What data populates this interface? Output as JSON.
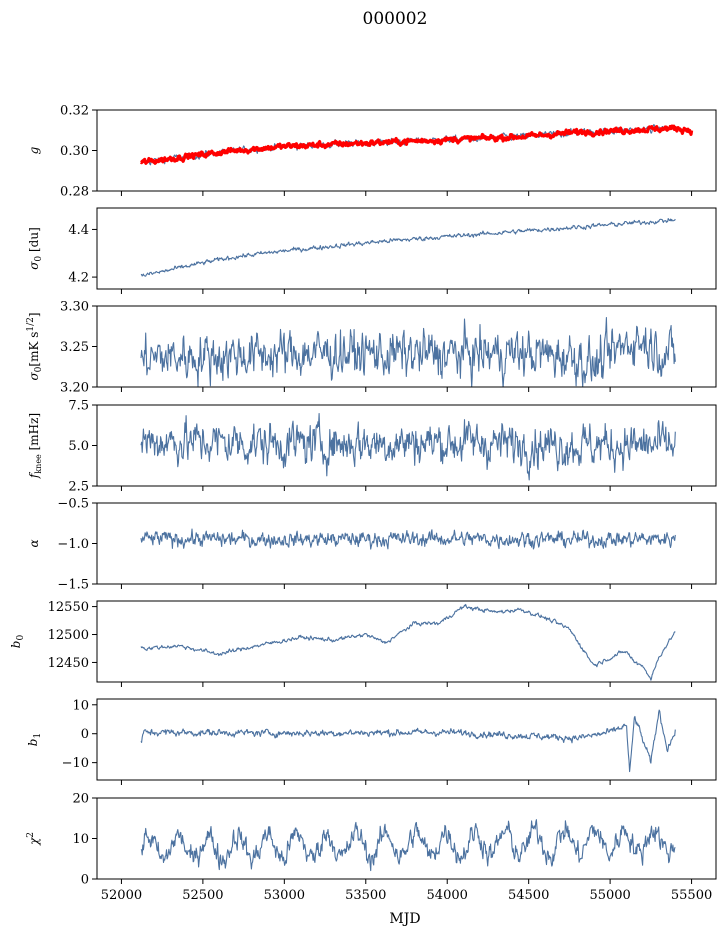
{
  "figure": {
    "title": "000002",
    "xlabel": "MJD"
  },
  "chart_data": [
    {
      "type": "line",
      "ylabel": "g",
      "ylim": [
        0.28,
        0.32
      ],
      "yticks": [
        0.28,
        0.3,
        0.32
      ],
      "ytick_labels": [
        "0.28",
        "0.30",
        "0.32"
      ],
      "xlim": [
        51850,
        55650
      ],
      "series": [
        {
          "color": "#4c72a0",
          "x": [
            52120,
            52300,
            52500,
            52700,
            53000,
            53300,
            53600,
            53900,
            54200,
            54500,
            54800,
            55100,
            55400
          ],
          "y": [
            0.294,
            0.296,
            0.298,
            0.3,
            0.302,
            0.303,
            0.304,
            0.305,
            0.306,
            0.307,
            0.309,
            0.31,
            0.311
          ],
          "noise": 0.0007
        },
        {
          "color": "#ff0000",
          "x": [
            52120,
            52300,
            52500,
            52700,
            53000,
            53300,
            53600,
            53900,
            54200,
            54500,
            54800,
            55100,
            55400,
            55500
          ],
          "y": [
            0.294,
            0.296,
            0.298,
            0.3,
            0.302,
            0.303,
            0.304,
            0.305,
            0.306,
            0.307,
            0.309,
            0.31,
            0.311,
            0.31
          ],
          "noise": 0.0006,
          "width": 3.2
        }
      ]
    },
    {
      "type": "line",
      "ylabel": "σ0 [du]",
      "ylim": [
        4.15,
        4.49
      ],
      "yticks": [
        4.2,
        4.4
      ],
      "ytick_labels": [
        "4.2",
        "4.4"
      ],
      "xlim": [
        51850,
        55650
      ],
      "series": [
        {
          "color": "#4c72a0",
          "x": [
            52120,
            52300,
            52500,
            52700,
            53000,
            53300,
            53600,
            53900,
            54200,
            54500,
            54800,
            55100,
            55400
          ],
          "y": [
            4.205,
            4.23,
            4.26,
            4.285,
            4.31,
            4.33,
            4.35,
            4.365,
            4.38,
            4.395,
            4.41,
            4.425,
            4.44
          ],
          "noise": 0.004
        }
      ]
    },
    {
      "type": "line",
      "ylabel": "σ0[mK s1/2]",
      "ylim": [
        3.2,
        3.3
      ],
      "yticks": [
        3.2,
        3.25,
        3.3
      ],
      "ytick_labels": [
        "3.20",
        "3.25",
        "3.30"
      ],
      "xlim": [
        51850,
        55650
      ],
      "series": [
        {
          "color": "#4c72a0",
          "x": [
            52120,
            52400,
            52800,
            53200,
            53600,
            54000,
            54400,
            54800,
            54900,
            55150,
            55400
          ],
          "y": [
            3.235,
            3.238,
            3.24,
            3.242,
            3.241,
            3.24,
            3.242,
            3.238,
            3.225,
            3.26,
            3.238
          ],
          "noise": 0.012
        }
      ]
    },
    {
      "type": "line",
      "ylabel": "fknee [mHz]",
      "ylim": [
        2.5,
        7.5
      ],
      "yticks": [
        2.5,
        5.0,
        7.5
      ],
      "ytick_labels": [
        "2.5",
        "5.0",
        "7.5"
      ],
      "xlim": [
        51850,
        55650
      ],
      "series": [
        {
          "color": "#4c72a0",
          "x": [
            52120,
            53000,
            54000,
            55000,
            55400
          ],
          "y": [
            5.3,
            5.1,
            5.2,
            5.0,
            5.0
          ],
          "noise": 0.55
        }
      ]
    },
    {
      "type": "line",
      "ylabel": "α",
      "ylim": [
        -1.5,
        -0.5
      ],
      "yticks": [
        -1.5,
        -1.0,
        -0.5
      ],
      "ytick_labels": [
        "−1.5",
        "−1.0",
        "−0.5"
      ],
      "xlim": [
        51850,
        55650
      ],
      "series": [
        {
          "color": "#4c72a0",
          "x": [
            52120,
            53000,
            54000,
            55000,
            55400
          ],
          "y": [
            -0.94,
            -0.95,
            -0.94,
            -0.95,
            -0.94
          ],
          "noise": 0.04
        }
      ]
    },
    {
      "type": "line",
      "ylabel": "b0",
      "ylim": [
        12415,
        12560
      ],
      "yticks": [
        12450,
        12500,
        12550
      ],
      "ytick_labels": [
        "12450",
        "12500",
        "12550"
      ],
      "xlim": [
        51850,
        55650
      ],
      "series": [
        {
          "color": "#4c72a0",
          "x": [
            52120,
            52150,
            52350,
            52600,
            52800,
            53100,
            53300,
            53500,
            53620,
            53800,
            53950,
            54100,
            54200,
            54300,
            54450,
            54600,
            54750,
            54900,
            55050,
            55100,
            55150,
            55200,
            55250,
            55300,
            55400
          ],
          "y": [
            12480,
            12475,
            12480,
            12465,
            12478,
            12495,
            12490,
            12500,
            12485,
            12520,
            12520,
            12550,
            12545,
            12540,
            12545,
            12530,
            12510,
            12445,
            12465,
            12470,
            12450,
            12445,
            12420,
            12460,
            12505
          ],
          "noise": 1.5
        }
      ]
    },
    {
      "type": "line",
      "ylabel": "b1",
      "ylim": [
        -16,
        12
      ],
      "yticks": [
        -10,
        0,
        10
      ],
      "ytick_labels": [
        "−10",
        "0",
        "10"
      ],
      "xlim": [
        51850,
        55650
      ],
      "series": [
        {
          "color": "#4c72a0",
          "x": [
            52120,
            52140,
            53000,
            54000,
            54800,
            55000,
            55100,
            55120,
            55150,
            55200,
            55250,
            55300,
            55350,
            55400
          ],
          "y": [
            -3,
            0.5,
            0.2,
            0.5,
            -1.5,
            0.5,
            3,
            -14,
            6,
            -2,
            -10,
            8,
            -5,
            0.3
          ],
          "noise": 0.5
        }
      ]
    },
    {
      "type": "line",
      "ylabel": "χ2",
      "ylim": [
        0,
        20
      ],
      "yticks": [
        0,
        10,
        20
      ],
      "ytick_labels": [
        "0",
        "10",
        "20"
      ],
      "xlim": [
        51850,
        55650
      ],
      "xticks": [
        52000,
        52500,
        53000,
        53500,
        54000,
        54500,
        55000,
        55500
      ],
      "xtick_labels": [
        "52000",
        "52500",
        "53000",
        "53500",
        "54000",
        "54500",
        "55000",
        "55500"
      ],
      "series": [
        {
          "color": "#4c72a0",
          "x": [
            52120,
            55400
          ],
          "y": [
            7.5,
            9.5
          ],
          "oscillation": {
            "amplitude": 3,
            "period_days": 182.6
          },
          "noise": 1.2
        }
      ]
    }
  ]
}
